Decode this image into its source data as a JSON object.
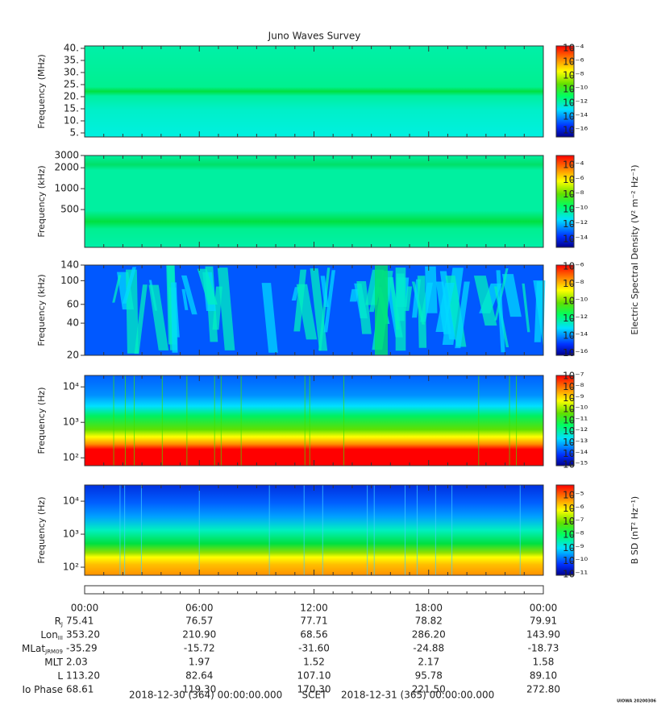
{
  "title": "Juno Waves Survey",
  "panels": [
    {
      "ylabel": "Frequency (MHz)",
      "scale": "linear",
      "ylim": [
        3.33,
        41
      ],
      "yticks": [
        {
          "value": 5,
          "label": "5."
        },
        {
          "value": 10,
          "label": "10."
        },
        {
          "value": 15,
          "label": "15."
        },
        {
          "value": 20,
          "label": "20."
        },
        {
          "value": 25,
          "label": "25."
        },
        {
          "value": 30,
          "label": "30."
        },
        {
          "value": 35,
          "label": "35."
        },
        {
          "value": 40,
          "label": "40."
        }
      ],
      "clim": [
        1.1e-17,
        0.00022
      ],
      "cticks": [
        {
          "value": 0.0001,
          "label": "10⁻⁴"
        },
        {
          "value": 1e-06,
          "label": "10⁻⁶"
        },
        {
          "value": 1e-08,
          "label": "10⁻⁸"
        },
        {
          "value": 1e-10,
          "label": "10⁻¹⁰"
        },
        {
          "value": 1e-12,
          "label": "10⁻¹²"
        },
        {
          "value": 1e-14,
          "label": "10⁻¹⁴"
        },
        {
          "value": 1e-16,
          "label": "10⁻¹⁶"
        }
      ]
    },
    {
      "ylabel": "Frequency (kHz)",
      "scale": "log",
      "ylim": [
        143,
        3000
      ],
      "yticks": [
        500,
        1000,
        2000,
        3000
      ],
      "clim": [
        8e-16,
        0.002
      ],
      "cticks": [
        {
          "value": 0.0001,
          "label": "10⁻⁴"
        },
        {
          "value": 1e-06,
          "label": "10⁻⁶"
        },
        {
          "value": 1e-08,
          "label": "10⁻⁸"
        },
        {
          "value": 1e-10,
          "label": "10⁻¹⁰"
        },
        {
          "value": 1e-12,
          "label": "10⁻¹²"
        },
        {
          "value": 1e-14,
          "label": "10⁻¹⁴"
        }
      ]
    },
    {
      "ylabel": "Frequency (kHz)",
      "scale": "log",
      "ylim": [
        20,
        140
      ],
      "yticks": [
        20,
        40,
        60,
        100,
        140
      ],
      "clim": [
        6e-17,
        1.6e-06
      ],
      "cticks": [
        {
          "value": 1e-06,
          "label": "10⁻⁶"
        },
        {
          "value": 1e-08,
          "label": "10⁻⁸"
        },
        {
          "value": 1e-10,
          "label": "10⁻¹⁰"
        },
        {
          "value": 1e-12,
          "label": "10⁻¹²"
        },
        {
          "value": 1e-14,
          "label": "10⁻¹⁴"
        },
        {
          "value": 1e-16,
          "label": "10⁻¹⁶"
        }
      ]
    },
    {
      "ylabel": "Frequency (Hz)",
      "scale": "log",
      "ylim": [
        60,
        21000
      ],
      "yticks": [
        {
          "value": 100,
          "label": "10²"
        },
        {
          "value": 1000,
          "label": "10³"
        },
        {
          "value": 10000,
          "label": "10⁴"
        }
      ],
      "clim": [
        8.5e-16,
        1.17e-07
      ],
      "cticks": [
        {
          "value": 1e-07,
          "label": "10⁻⁷"
        },
        {
          "value": 1e-08,
          "label": "10⁻⁸"
        },
        {
          "value": 1e-09,
          "label": "10⁻⁹"
        },
        {
          "value": 1e-10,
          "label": "10⁻¹⁰"
        },
        {
          "value": 1e-11,
          "label": "10⁻¹¹"
        },
        {
          "value": 1e-12,
          "label": "10⁻¹²"
        },
        {
          "value": 1e-13,
          "label": "10⁻¹³"
        },
        {
          "value": 1e-14,
          "label": "10⁻¹⁴"
        },
        {
          "value": 1e-15,
          "label": "10⁻¹⁵"
        }
      ]
    },
    {
      "ylabel": "Frequency (Hz)",
      "scale": "log",
      "ylim": [
        57,
        30900
      ],
      "yticks": [
        {
          "value": 100,
          "label": "10²"
        },
        {
          "value": 1000,
          "label": "10³"
        },
        {
          "value": 10000,
          "label": "10⁴"
        }
      ],
      "clim": [
        8.7e-12,
        6.3e-05
      ],
      "cticks": [
        {
          "value": 1e-05,
          "label": "10⁻⁵"
        },
        {
          "value": 1e-06,
          "label": "10⁻⁶"
        },
        {
          "value": 1e-07,
          "label": "10⁻⁷"
        },
        {
          "value": 1e-08,
          "label": "10⁻⁸"
        },
        {
          "value": 1e-09,
          "label": "10⁻⁹"
        },
        {
          "value": 1e-10,
          "label": "10⁻¹⁰"
        },
        {
          "value": 1e-11,
          "label": "10⁻¹¹"
        }
      ]
    }
  ],
  "colorbar_labels": [
    "Electric Spectral Density (V² m⁻² Hz⁻¹)",
    "B SD (nT² Hz⁻¹)"
  ],
  "time_ticks": [
    "00:00",
    "06:00",
    "12:00",
    "18:00",
    "00:00"
  ],
  "ephemeris": [
    {
      "label": "R",
      "sub": "J",
      "values": [
        "75.41",
        "76.57",
        "77.71",
        "78.82",
        "79.91"
      ]
    },
    {
      "label": "Lon",
      "sub": "III",
      "values": [
        "353.20",
        "210.90",
        "68.56",
        "286.20",
        "143.90"
      ]
    },
    {
      "label": "MLat",
      "sub": "JRM09",
      "values": [
        "-35.29",
        "-15.72",
        "-31.60",
        "-24.88",
        "-18.73"
      ]
    },
    {
      "label": "MLT",
      "values": [
        "2.03",
        "1.97",
        "1.52",
        "2.17",
        "1.58"
      ]
    },
    {
      "label": "L",
      "values": [
        "113.20",
        "82.64",
        "107.10",
        "95.78",
        "89.10"
      ]
    },
    {
      "label": "Io Phase",
      "values": [
        "68.61",
        "119.30",
        "170.30",
        "221.50",
        "272.80"
      ]
    }
  ],
  "footer": {
    "start": "2018-12-30 (364) 00:00:00.000",
    "center": "SCET",
    "end": "2018-12-31 (365) 00:00:00.000"
  },
  "stamp": "UIOWA 20200306"
}
